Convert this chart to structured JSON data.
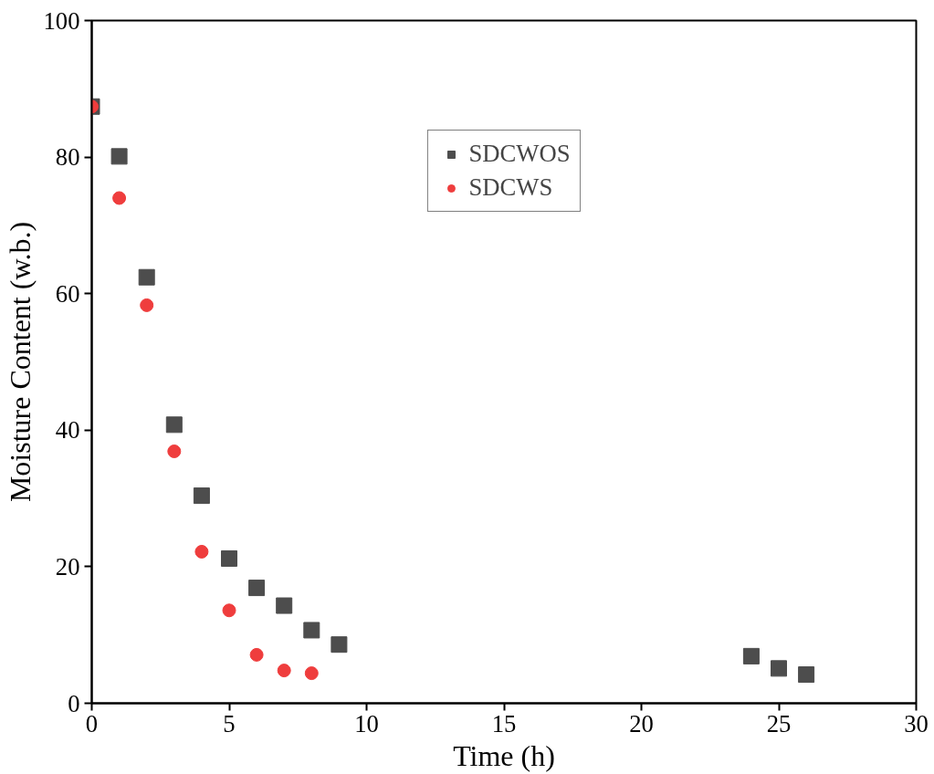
{
  "chart_data": {
    "type": "scatter",
    "xlabel": "Time (h)",
    "ylabel": "Moisture Content (w.b.)",
    "xlim": [
      0,
      30
    ],
    "xticks": [
      0,
      5,
      10,
      15,
      20,
      25,
      30
    ],
    "ylim": [
      0,
      100
    ],
    "yticks": [
      0,
      20,
      40,
      60,
      80,
      100
    ],
    "grid": false,
    "legend": "top",
    "tick_labels": "xy",
    "series": [
      {
        "name": "SDCWOS",
        "color": "#4d4d4d",
        "marker": "square",
        "x": [
          0,
          1,
          2,
          3,
          4,
          5,
          6,
          7,
          8,
          9,
          24,
          25,
          26
        ],
        "values": [
          87.4,
          80.1,
          62.4,
          40.8,
          30.4,
          21.2,
          16.9,
          14.3,
          10.7,
          8.6,
          6.9,
          5.1,
          4.2
        ]
      },
      {
        "name": "SDCWS",
        "color": "#ef3d3d",
        "marker": "circle",
        "x": [
          0,
          1,
          2,
          3,
          4,
          5,
          6,
          7,
          8
        ],
        "values": [
          87.4,
          74.0,
          58.3,
          36.9,
          22.2,
          13.6,
          7.1,
          4.8,
          4.4
        ]
      }
    ]
  }
}
